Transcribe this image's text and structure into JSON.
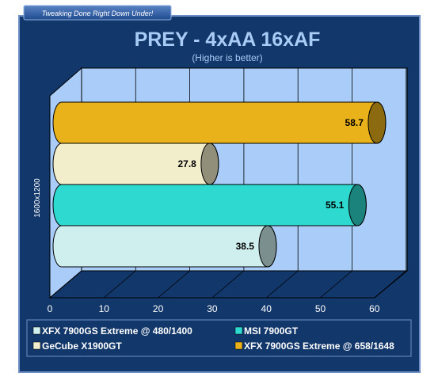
{
  "header": {
    "tagline": "Tweaking Done Right Down Under!"
  },
  "chart_data": {
    "type": "bar",
    "orientation": "horizontal",
    "title": "PREY - 4xAA 16xAF",
    "subtitle": "(Higher is better)",
    "ylabel": "1600x1200",
    "xlim": [
      0,
      60
    ],
    "xticks": [
      "0",
      "10",
      "20",
      "30",
      "40",
      "50",
      "60"
    ],
    "grid": true,
    "legend_position": "bottom",
    "series": [
      {
        "name": "XFX 7900GS Extreme @ 480/1400",
        "value": 38.5,
        "label": "38.5",
        "color": "#cfeeee"
      },
      {
        "name": "MSI 7900GT",
        "value": 55.1,
        "label": "55.1",
        "color": "#2ed9cf"
      },
      {
        "name": "GeCube X1900GT",
        "value": 27.8,
        "label": "27.8",
        "color": "#f2eecb"
      },
      {
        "name": "XFX 7900GS Extreme @ 658/1648",
        "value": 58.7,
        "label": "58.7",
        "color": "#e9b21a"
      }
    ]
  },
  "colors": {
    "panel": "#12376a",
    "plot_bg": "#a9cdf8",
    "floor": "#12376a",
    "grid": "#000000"
  }
}
